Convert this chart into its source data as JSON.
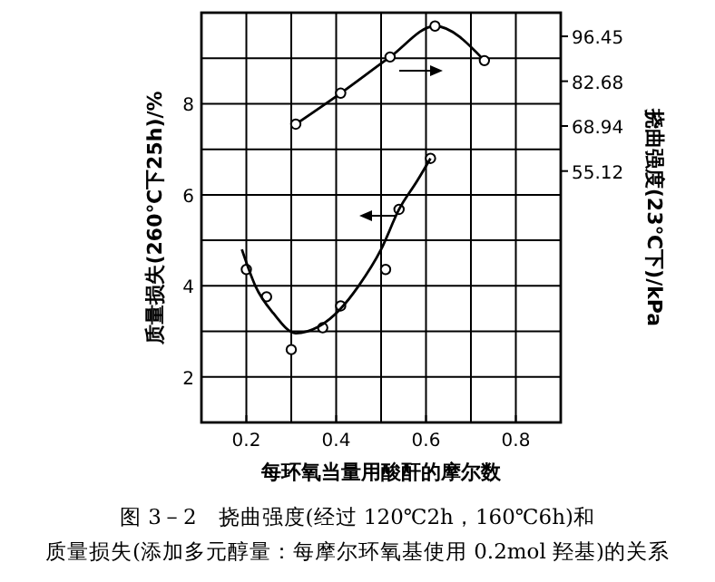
{
  "chart_data": {
    "type": "line",
    "title": "图 3－2　挠曲强度(经过 120℃2h，160℃6h)和",
    "subtitle": "质量损失(添加多元醇量：每摩尔环氧基使用 0.2mol 羟基)的关系",
    "xlabel": "每环氧当量用酸酐的摩尔数",
    "ylabel": "质量损失(260℃下25h)/%",
    "y2label": "挠曲强度(23℃下)/kPa",
    "xlim": [
      0.1,
      0.9
    ],
    "xticks": [
      {
        "value": 0.1,
        "label": null
      },
      0.2,
      {
        "value": 0.3,
        "label": null
      },
      0.4,
      {
        "value": 0.5,
        "label": null
      },
      0.6,
      {
        "value": 0.7,
        "label": null
      },
      0.8,
      {
        "value": 0.9,
        "label": null
      }
    ],
    "ylim": [
      1,
      10
    ],
    "yticks": [
      2,
      {
        "value": 3,
        "label": null
      },
      4,
      {
        "value": 5,
        "label": null
      },
      6,
      {
        "value": 7,
        "label": null
      },
      8,
      {
        "value": 9,
        "label": null
      }
    ],
    "y2lim": [
      -22,
      103.7
    ],
    "y2ticks": [
      55.12,
      68.94,
      82.68,
      96.45
    ],
    "grid": true,
    "series": [
      {
        "axis": "y2",
        "color": "#000000",
        "marker": "circle",
        "x": [
          0.31,
          0.41,
          0.52,
          0.62,
          0.73
        ],
        "values": [
          69.5,
          79.0,
          90.1,
          99.6,
          89.0
        ]
      },
      {
        "type": "scatter",
        "color": "#000000",
        "marker": "circle",
        "x": [
          0.2,
          0.245,
          0.3,
          0.37,
          0.41,
          0.51,
          0.54,
          0.61
        ],
        "values": [
          4.36,
          3.76,
          2.6,
          3.08,
          3.56,
          4.36,
          5.68,
          6.8
        ]
      },
      {
        "type": "line",
        "color": "#000000",
        "marker": "none",
        "line_style": "solid",
        "x": [
          0.19,
          0.22,
          0.26,
          0.31,
          0.36,
          0.41,
          0.45,
          0.5,
          0.54,
          0.58,
          0.61
        ],
        "values": [
          4.8,
          4.0,
          3.4,
          2.96,
          3.1,
          3.5,
          4.0,
          4.8,
          5.68,
          6.3,
          6.8
        ]
      }
    ]
  }
}
